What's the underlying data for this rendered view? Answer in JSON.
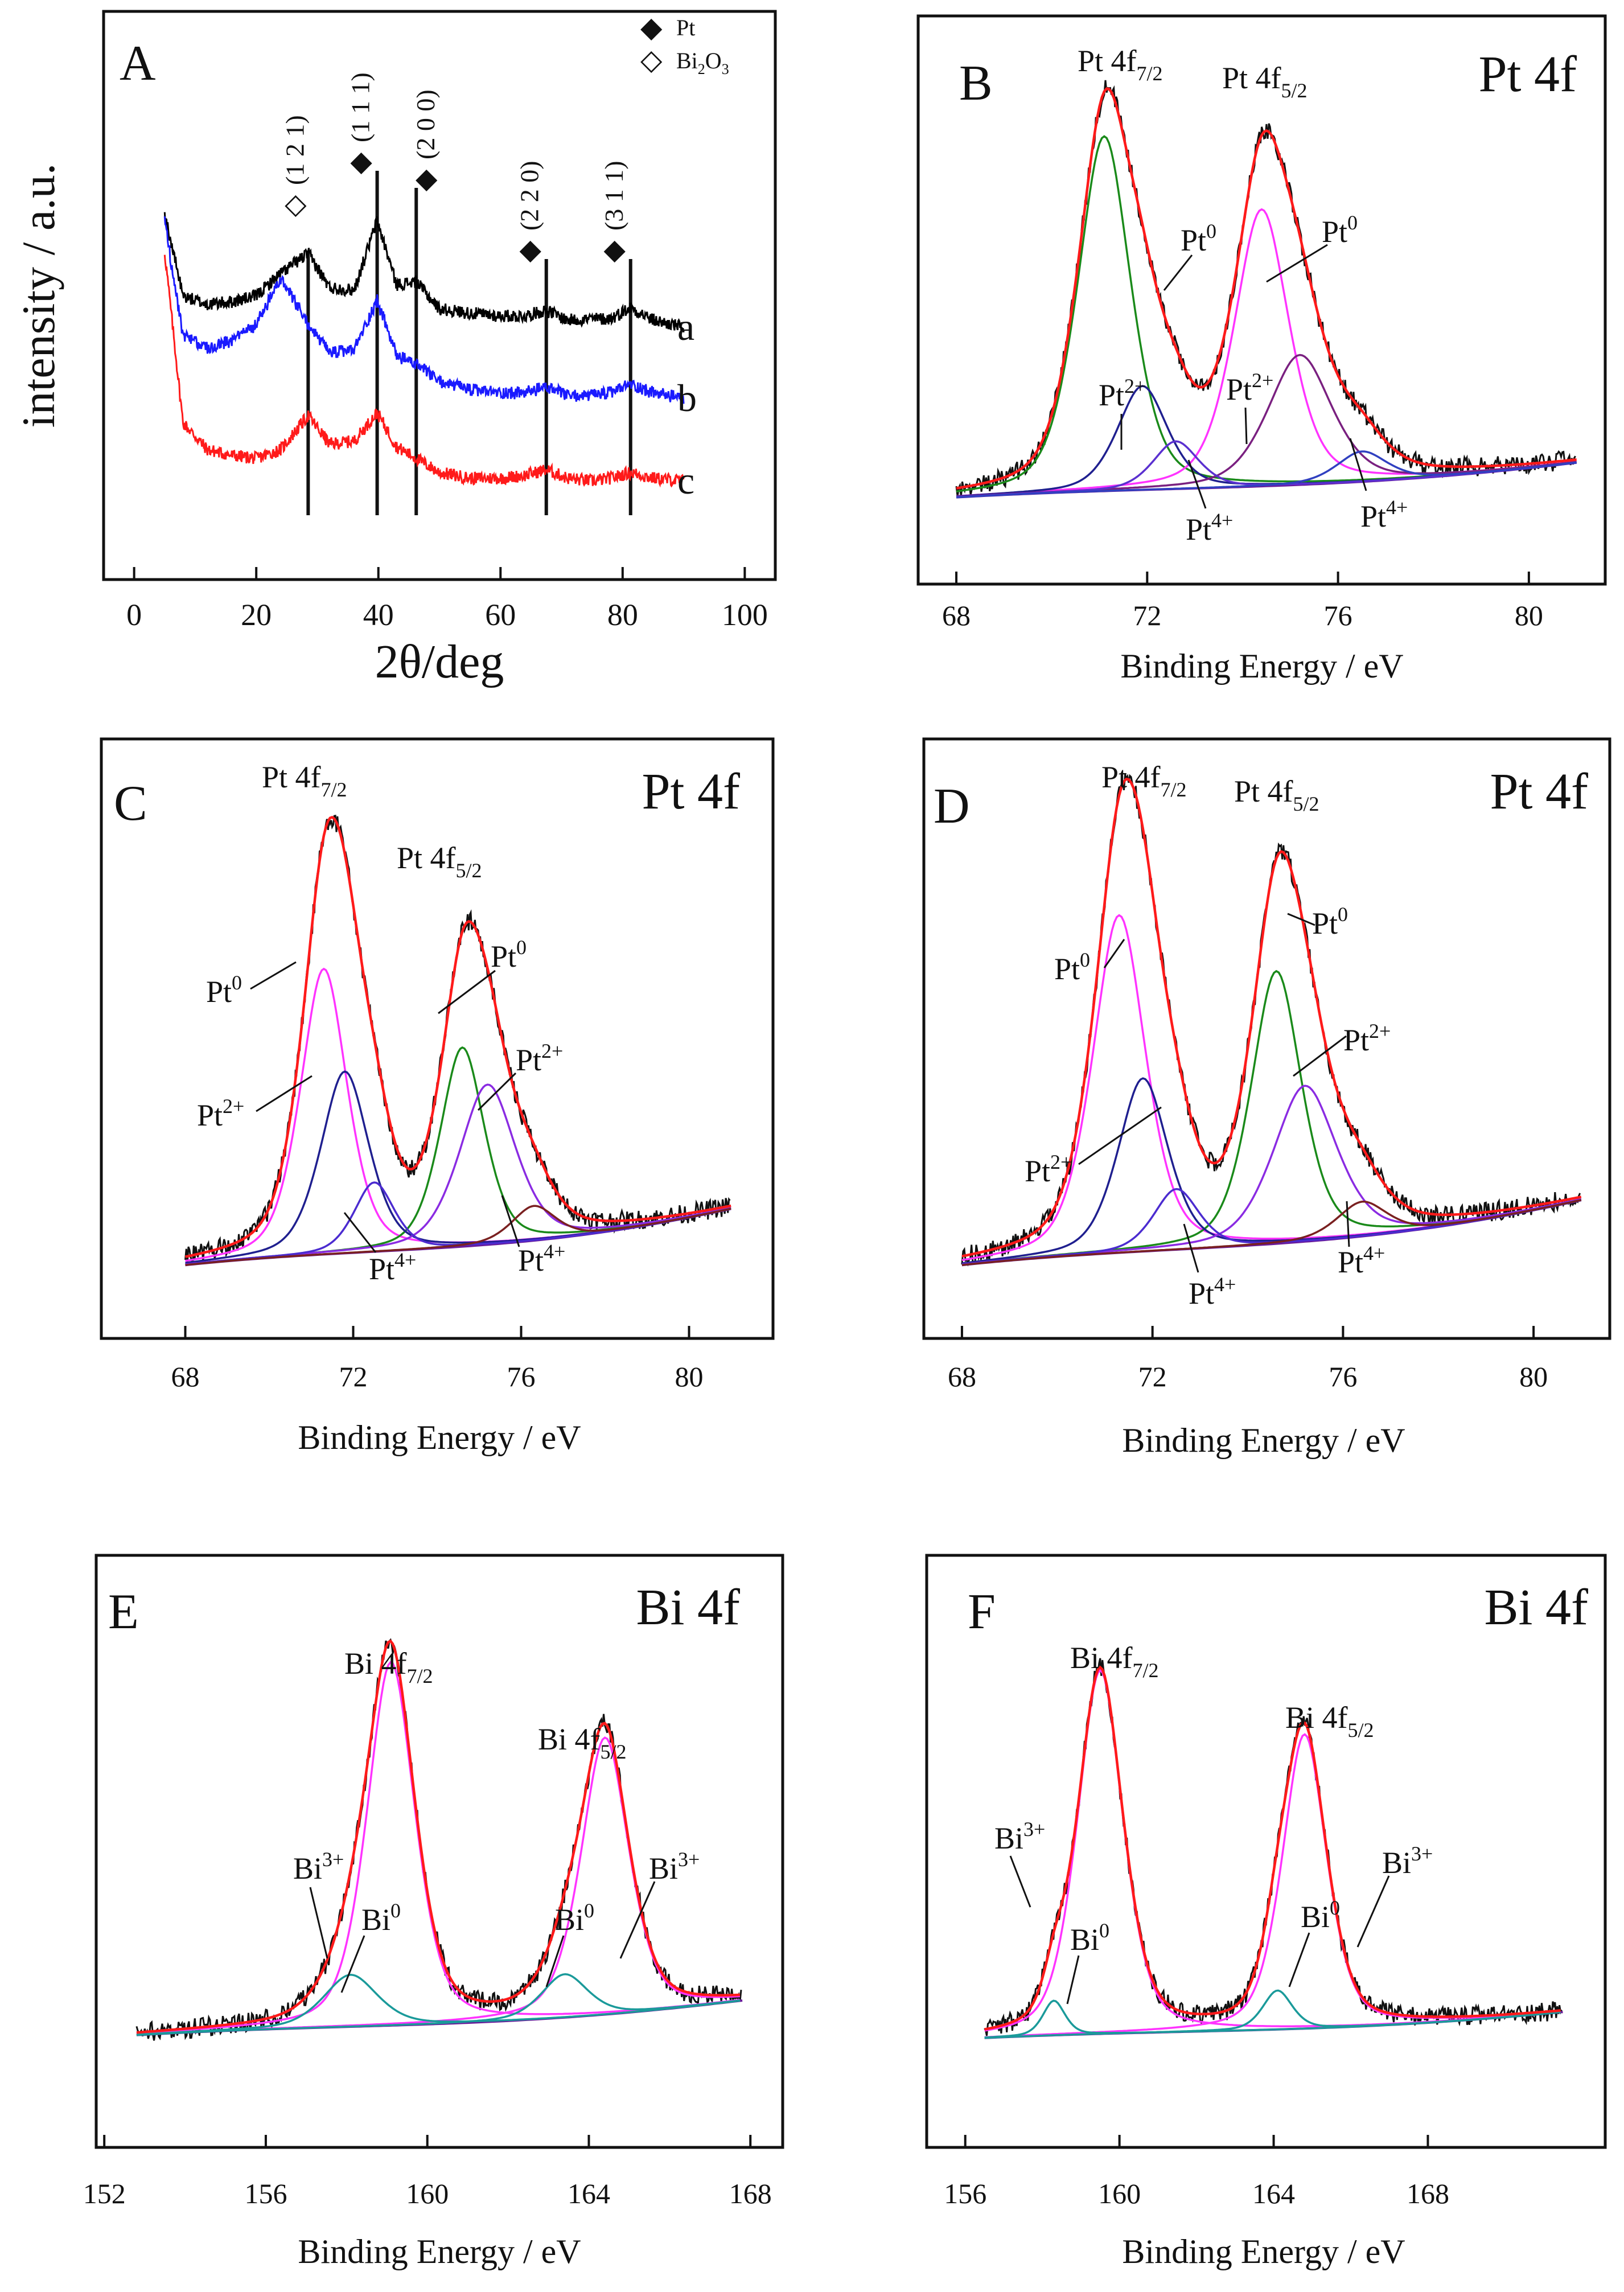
{
  "chart_data": [
    {
      "type": "line",
      "panel": "A",
      "title": "A",
      "xlabel": "2θ/deg",
      "ylabel": "intensity / a.u.",
      "xlim": [
        -5,
        105
      ],
      "xticks": [
        "0",
        "20",
        "40",
        "60",
        "80",
        "100"
      ],
      "legend": [
        {
          "marker": "◆",
          "label": "Pt"
        },
        {
          "marker": "◇",
          "label": "Bi",
          "sub1": "2",
          "mid": "O",
          "sub2": "3"
        }
      ],
      "peak_annotations": [
        {
          "marker": "◇",
          "hkl": "(1 2 1)",
          "x": 28.5
        },
        {
          "marker": "◆",
          "hkl": "(1 1 1)",
          "x": 39.8
        },
        {
          "marker": "◆",
          "hkl": "(2 0 0)",
          "x": 46.2
        },
        {
          "marker": "◆",
          "hkl": "(2 2 0)",
          "x": 67.5
        },
        {
          "marker": "◆",
          "hkl": "(3 1 1)",
          "x": 81.3
        }
      ],
      "series": [
        {
          "name": "a",
          "color": "#000000",
          "offset": 2.4,
          "x": [
            5,
            8,
            12,
            16,
            20,
            24,
            28.5,
            32,
            36,
            39.8,
            43,
            46.2,
            50,
            55,
            60,
            64,
            67.5,
            71,
            75,
            78,
            81.3,
            85,
            90
          ],
          "values": [
            1.3,
            0.72,
            0.66,
            0.68,
            0.72,
            0.88,
            1.02,
            0.78,
            0.76,
            1.25,
            0.8,
            0.82,
            0.63,
            0.6,
            0.58,
            0.58,
            0.62,
            0.55,
            0.56,
            0.56,
            0.64,
            0.55,
            0.5
          ]
        },
        {
          "name": "b",
          "color": "#1a1aff",
          "offset": 1.2,
          "x": [
            5,
            8,
            12,
            16,
            20,
            24,
            28.5,
            32,
            36,
            39.8,
            43,
            46.2,
            50,
            55,
            60,
            64,
            67.5,
            71,
            75,
            78,
            81.3,
            85,
            90
          ],
          "values": [
            1.6,
            0.8,
            0.72,
            0.76,
            0.88,
            1.2,
            0.88,
            0.68,
            0.7,
            1.05,
            0.66,
            0.6,
            0.48,
            0.42,
            0.4,
            0.4,
            0.44,
            0.38,
            0.38,
            0.4,
            0.46,
            0.4,
            0.36
          ]
        },
        {
          "name": "c",
          "color": "#ff1a1a",
          "offset": 0.0,
          "x": [
            5,
            8,
            12,
            16,
            20,
            24,
            28.5,
            32,
            36,
            39.8,
            43,
            46.2,
            50,
            55,
            60,
            64,
            67.5,
            71,
            75,
            78,
            81.3,
            85,
            90
          ],
          "values": [
            1.75,
            0.55,
            0.36,
            0.32,
            0.3,
            0.36,
            0.6,
            0.4,
            0.42,
            0.62,
            0.38,
            0.3,
            0.2,
            0.16,
            0.16,
            0.18,
            0.22,
            0.16,
            0.14,
            0.16,
            0.2,
            0.16,
            0.14
          ]
        }
      ]
    },
    {
      "type": "line",
      "panel": "B",
      "title": "B",
      "spectrum": "Pt 4f",
      "xlabel": "Binding Energy / eV",
      "xlim": [
        67.2,
        81.6
      ],
      "xticks": [
        "68",
        "72",
        "76",
        "80"
      ],
      "x_data_range": [
        68,
        81
      ],
      "peak_labels": [
        {
          "main": "Pt 4f",
          "sub": "7/2"
        },
        {
          "main": "Pt 4f",
          "sub": "5/2"
        }
      ],
      "component_labels": [
        {
          "main": "Pt",
          "sup": "0"
        },
        {
          "main": "Pt",
          "sup": "0"
        },
        {
          "main": "Pt",
          "sup": "2+"
        },
        {
          "main": "Pt",
          "sup": "2+"
        },
        {
          "main": "Pt",
          "sup": "4+"
        },
        {
          "main": "Pt",
          "sup": "4+"
        }
      ],
      "baseline": {
        "start": 0.04,
        "end": 0.12
      },
      "series": [
        {
          "name": "Pt0 4f7/2",
          "color": "#1a8a1a",
          "center": 71.1,
          "amplitude": 0.82,
          "width": 0.58
        },
        {
          "name": "Pt0 4f5/2",
          "color": "#ff33ff",
          "center": 74.4,
          "amplitude": 0.64,
          "width": 0.6
        },
        {
          "name": "Pt2+ 4f7/2",
          "color": "#1f1f8f",
          "center": 71.9,
          "amplitude": 0.24,
          "width": 0.55
        },
        {
          "name": "Pt2+ 4f5/2",
          "color": "#7a2080",
          "center": 75.2,
          "amplitude": 0.3,
          "width": 0.7
        },
        {
          "name": "Pt4+ 4f7/2",
          "color": "#5a30d0",
          "center": 72.6,
          "amplitude": 0.11,
          "width": 0.5
        },
        {
          "name": "Pt4+ 4f5/2",
          "color": "#3040c0",
          "center": 76.5,
          "amplitude": 0.07,
          "width": 0.55
        }
      ]
    },
    {
      "type": "line",
      "panel": "C",
      "title": "C",
      "spectrum": "Pt 4f",
      "xlabel": "Binding Energy / eV",
      "xlim": [
        66.0,
        82.0
      ],
      "xticks": [
        "68",
        "72",
        "76",
        "80"
      ],
      "x_data_range": [
        68,
        81
      ],
      "peak_labels": [
        {
          "main": "Pt 4f",
          "sub": "7/2"
        },
        {
          "main": "Pt 4f",
          "sub": "5/2"
        }
      ],
      "component_labels": [
        {
          "main": "Pt",
          "sup": "0"
        },
        {
          "main": "Pt",
          "sup": "0"
        },
        {
          "main": "Pt",
          "sup": "2+"
        },
        {
          "main": "Pt",
          "sup": "2+"
        },
        {
          "main": "Pt",
          "sup": "4+"
        },
        {
          "main": "Pt",
          "sup": "4+"
        }
      ],
      "baseline": {
        "start": 0.03,
        "end": 0.16
      },
      "series": [
        {
          "name": "Pt0 4f7/2",
          "color": "#ff33ff",
          "center": 71.3,
          "amplitude": 0.66,
          "width": 0.58
        },
        {
          "name": "Pt0 4f5/2",
          "color": "#1a8a1a",
          "center": 74.6,
          "amplitude": 0.46,
          "width": 0.55
        },
        {
          "name": "Pt2+ 4f7/2",
          "color": "#1f1f8f",
          "center": 71.8,
          "amplitude": 0.42,
          "width": 0.6
        },
        {
          "name": "Pt2+ 4f5/2",
          "color": "#8a2be2",
          "center": 75.2,
          "amplitude": 0.37,
          "width": 0.7
        },
        {
          "name": "Pt4+ 4f7/2",
          "color": "#4b2bd0",
          "center": 72.5,
          "amplitude": 0.16,
          "width": 0.5
        },
        {
          "name": "Pt4+ 4f5/2",
          "color": "#7a2020",
          "center": 76.3,
          "amplitude": 0.08,
          "width": 0.55
        }
      ]
    },
    {
      "type": "line",
      "panel": "D",
      "title": "D",
      "spectrum": "Pt 4f",
      "xlabel": "Binding Energy / eV",
      "xlim": [
        67.2,
        81.6
      ],
      "xticks": [
        "68",
        "72",
        "76",
        "80"
      ],
      "x_data_range": [
        68,
        81
      ],
      "peak_labels": [
        {
          "main": "Pt 4f",
          "sub": "7/2"
        },
        {
          "main": "Pt 4f",
          "sub": "5/2"
        }
      ],
      "component_labels": [
        {
          "main": "Pt",
          "sup": "0"
        },
        {
          "main": "Pt",
          "sup": "0"
        },
        {
          "main": "Pt",
          "sup": "2+"
        },
        {
          "main": "Pt",
          "sup": "2+"
        },
        {
          "main": "Pt",
          "sup": "4+"
        },
        {
          "main": "Pt",
          "sup": "4+"
        }
      ],
      "baseline": {
        "start": 0.03,
        "end": 0.18
      },
      "series": [
        {
          "name": "Pt0 4f7/2",
          "color": "#ff33ff",
          "center": 71.3,
          "amplitude": 0.78,
          "width": 0.58
        },
        {
          "name": "Pt0 4f5/2",
          "color": "#1a8a1a",
          "center": 74.6,
          "amplitude": 0.63,
          "width": 0.55
        },
        {
          "name": "Pt2+ 4f7/2",
          "color": "#1f1f8f",
          "center": 71.8,
          "amplitude": 0.4,
          "width": 0.55
        },
        {
          "name": "Pt2+ 4f5/2",
          "color": "#8a2be2",
          "center": 75.2,
          "amplitude": 0.36,
          "width": 0.7
        },
        {
          "name": "Pt4+ 4f7/2",
          "color": "#4b2bd0",
          "center": 72.5,
          "amplitude": 0.14,
          "width": 0.5
        },
        {
          "name": "Pt4+ 4f5/2",
          "color": "#7a2020",
          "center": 76.4,
          "amplitude": 0.08,
          "width": 0.55
        }
      ]
    },
    {
      "type": "line",
      "panel": "E",
      "title": "E",
      "spectrum": "Bi 4f",
      "xlabel": "Binding Energy / eV",
      "xlim": [
        151.8,
        168.8
      ],
      "xticks": [
        "152",
        "156",
        "160",
        "164",
        "168"
      ],
      "x_data_range": [
        152.8,
        167.8
      ],
      "peak_labels": [
        {
          "main": "Bi 4f",
          "sub": "7/2"
        },
        {
          "main": "Bi 4f",
          "sub": "5/2"
        }
      ],
      "component_labels": [
        {
          "main": "Bi",
          "sup": "3+"
        },
        {
          "main": "Bi",
          "sup": "0"
        },
        {
          "main": "Bi",
          "sup": "0"
        },
        {
          "main": "Bi",
          "sup": "3+"
        }
      ],
      "baseline": {
        "start": 0.02,
        "end": 0.1
      },
      "series": [
        {
          "name": "Bi3+ 4f7/2",
          "color": "#ff33ff",
          "center": 159.1,
          "amplitude": 0.84,
          "width": 0.62
        },
        {
          "name": "Bi3+ 4f5/2",
          "color": "#ff33ff",
          "center": 164.4,
          "amplitude": 0.64,
          "width": 0.62
        },
        {
          "name": "Bi0 4f7/2",
          "color": "#1a9a9a",
          "center": 158.1,
          "amplitude": 0.12,
          "width": 0.7
        },
        {
          "name": "Bi0 4f5/2",
          "color": "#1a9a9a",
          "center": 163.4,
          "amplitude": 0.1,
          "width": 0.6
        }
      ]
    },
    {
      "type": "line",
      "panel": "F",
      "title": "F",
      "spectrum": "Bi 4f",
      "xlabel": "Binding Energy / eV",
      "xlim": [
        155.0,
        172.6
      ],
      "xticks": [
        "156",
        "160",
        "164",
        "168"
      ],
      "x_data_range": [
        156.5,
        171.5
      ],
      "peak_labels": [
        {
          "main": "Bi 4f",
          "sub": "7/2"
        },
        {
          "main": "Bi 4f",
          "sub": "5/2"
        }
      ],
      "component_labels": [
        {
          "main": "Bi",
          "sup": "3+"
        },
        {
          "main": "Bi",
          "sup": "0"
        },
        {
          "main": "Bi",
          "sup": "0"
        },
        {
          "main": "Bi",
          "sup": "3+"
        }
      ],
      "baseline": {
        "start": 0.02,
        "end": 0.08
      },
      "series": [
        {
          "name": "Bi3+ 4f7/2",
          "color": "#ff33ff",
          "center": 159.5,
          "amplitude": 0.84,
          "width": 0.62
        },
        {
          "name": "Bi3+ 4f5/2",
          "color": "#ff33ff",
          "center": 164.8,
          "amplitude": 0.68,
          "width": 0.6
        },
        {
          "name": "Bi0 4f7/2",
          "color": "#1a9a9a",
          "center": 158.3,
          "amplitude": 0.08,
          "width": 0.3
        },
        {
          "name": "Bi0 4f5/2",
          "color": "#1a9a9a",
          "center": 164.1,
          "amplitude": 0.09,
          "width": 0.4
        }
      ]
    }
  ]
}
